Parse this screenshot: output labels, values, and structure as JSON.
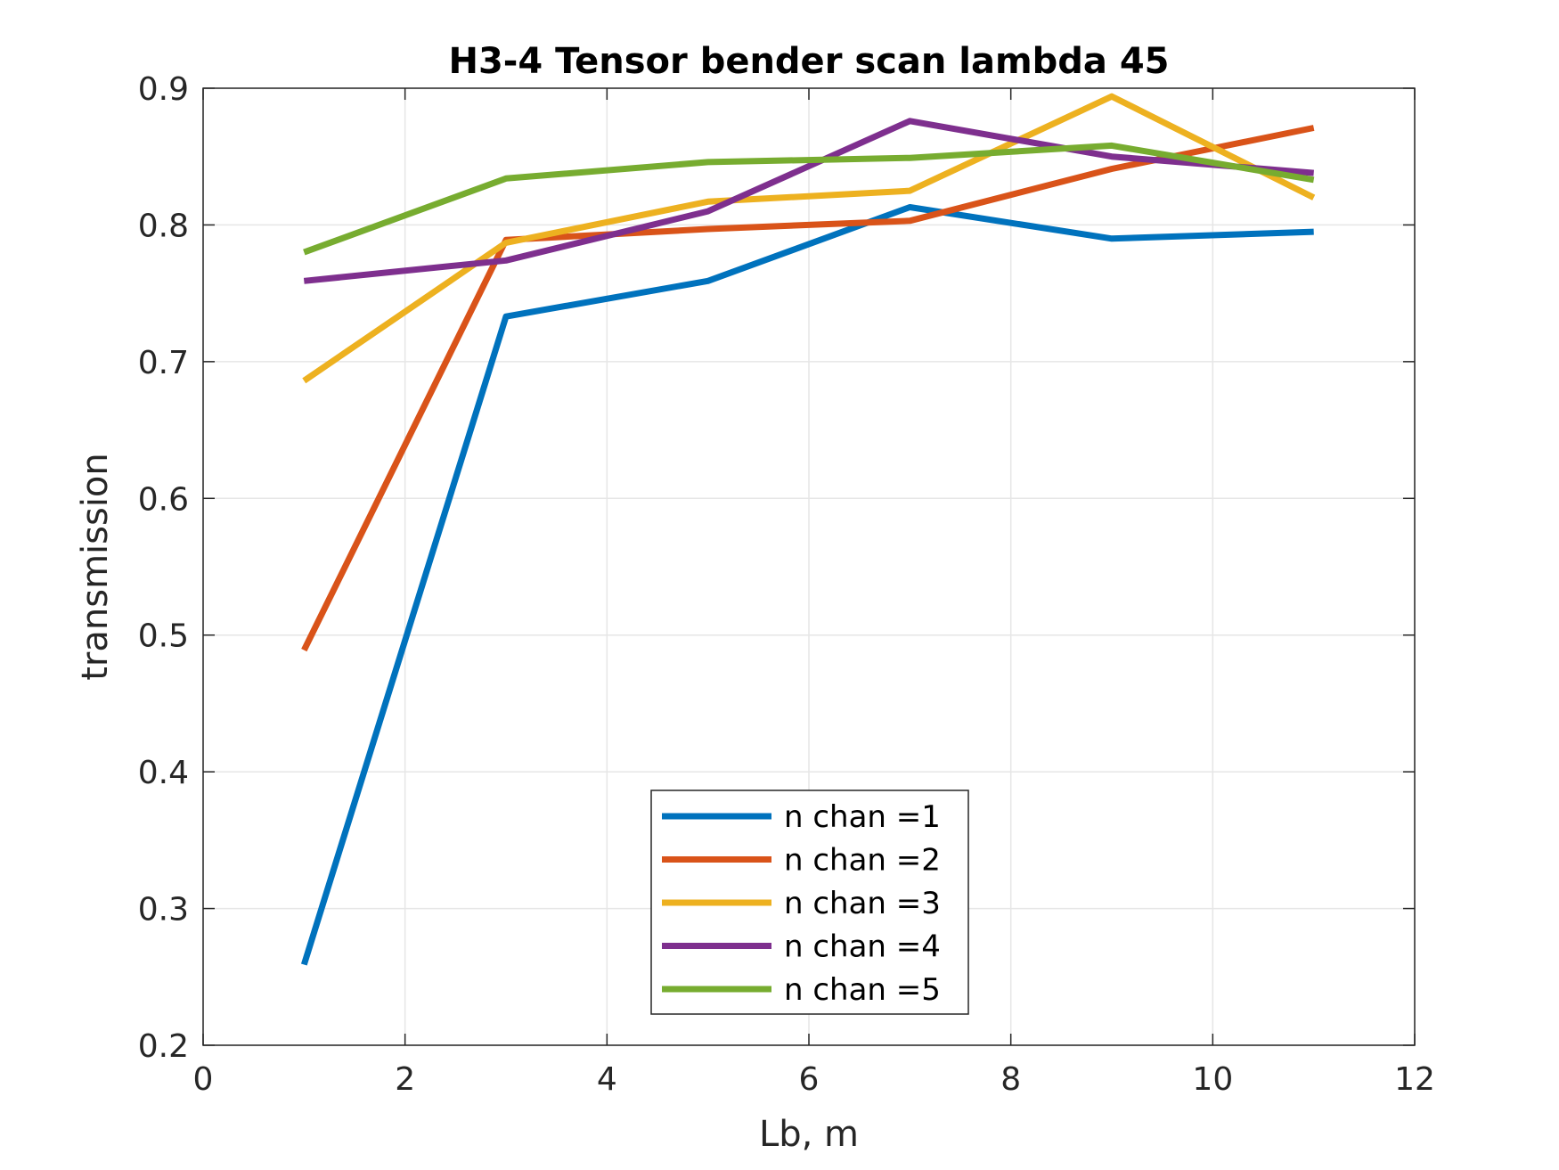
{
  "chart_data": {
    "type": "line",
    "title": "H3-4 Tensor bender scan lambda 45",
    "xlabel": "Lb, m",
    "ylabel": "transmission",
    "xlim": [
      0,
      12
    ],
    "ylim": [
      0.2,
      0.9
    ],
    "xticks": [
      "0",
      "2",
      "4",
      "6",
      "8",
      "10",
      "12"
    ],
    "yticks": [
      "0.2",
      "0.3",
      "0.4",
      "0.5",
      "0.6",
      "0.7",
      "0.8",
      "0.9"
    ],
    "grid": true,
    "legend_position": "bottom-center",
    "x": [
      1,
      3,
      5,
      7,
      9,
      11
    ],
    "series": [
      {
        "name": "n chan =1",
        "color": "#0072BD",
        "values": [
          0.259,
          0.733,
          0.759,
          0.813,
          0.79,
          0.795
        ]
      },
      {
        "name": "n chan =2",
        "color": "#D95319",
        "values": [
          0.489,
          0.789,
          0.797,
          0.803,
          0.841,
          0.871
        ]
      },
      {
        "name": "n chan =3",
        "color": "#EDB120",
        "values": [
          0.686,
          0.787,
          0.817,
          0.825,
          0.894,
          0.82
        ]
      },
      {
        "name": "n chan =4",
        "color": "#7E2F8E",
        "values": [
          0.759,
          0.774,
          0.81,
          0.876,
          0.85,
          0.838
        ]
      },
      {
        "name": "n chan =5",
        "color": "#77AC30",
        "values": [
          0.78,
          0.834,
          0.846,
          0.849,
          0.858,
          0.833
        ]
      }
    ]
  }
}
